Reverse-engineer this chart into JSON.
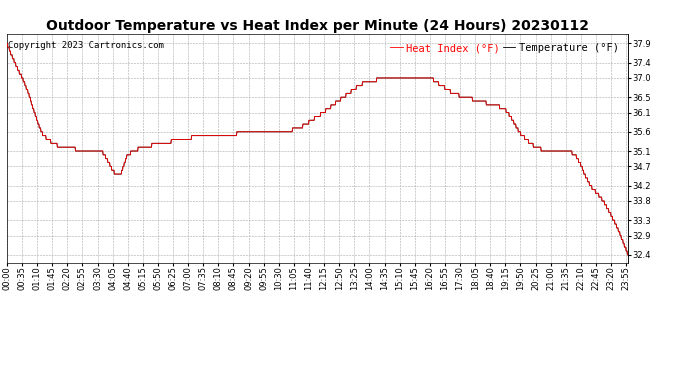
{
  "title": "Outdoor Temperature vs Heat Index per Minute (24 Hours) 20230112",
  "copyright": "Copyright 2023 Cartronics.com",
  "legend_heat": "Heat Index (°F)",
  "legend_temp": "Temperature (°F)",
  "ylim": [
    32.2,
    38.15
  ],
  "yticks": [
    32.4,
    32.9,
    33.3,
    33.8,
    34.2,
    34.7,
    35.1,
    35.6,
    36.1,
    36.5,
    37.0,
    37.4,
    37.9
  ],
  "bg_color": "#ffffff",
  "plot_bg_color": "#ffffff",
  "line_color_heat": "#ff0000",
  "line_color_temp": "#000000",
  "grid_color": "#aaaaaa",
  "title_fontsize": 10,
  "copyright_fontsize": 6.5,
  "legend_fontsize": 7.5,
  "tick_fontsize": 6
}
